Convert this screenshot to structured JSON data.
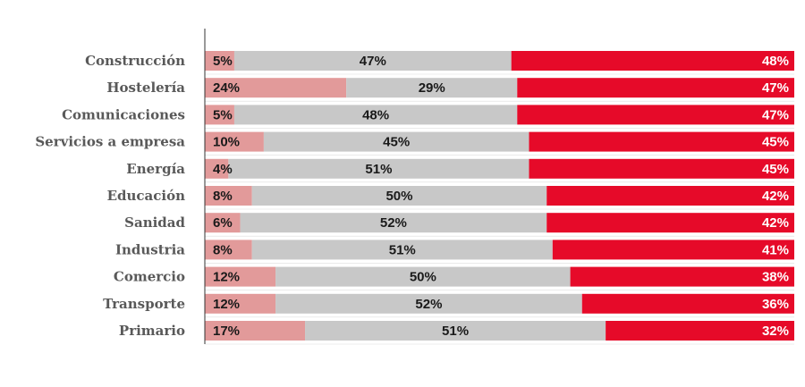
{
  "chart_data": {
    "type": "bar",
    "orientation": "horizontal",
    "stacked": true,
    "categories": [
      "Construcción",
      "Hostelería",
      "Comunicaciones",
      "Servicios a empresa",
      "Energía",
      "Educación",
      "Sanidad",
      "Industria",
      "Comercio",
      "Transporte",
      "Primario"
    ],
    "series": [
      {
        "values": [
          5,
          24,
          5,
          10,
          4,
          8,
          6,
          8,
          12,
          12,
          17
        ]
      },
      {
        "values": [
          47,
          29,
          48,
          45,
          51,
          50,
          52,
          51,
          50,
          52,
          51
        ]
      },
      {
        "values": [
          48,
          47,
          47,
          45,
          45,
          42,
          42,
          41,
          38,
          36,
          32
        ]
      }
    ],
    "value_labels": {
      "s0": [
        "5%",
        "24%",
        "5%",
        "10%",
        "4%",
        "8%",
        "6%",
        "8%",
        "12%",
        "12%",
        "17%"
      ],
      "s1": [
        "47%",
        "29%",
        "48%",
        "45%",
        "51%",
        "50%",
        "52%",
        "51%",
        "50%",
        "52%",
        "51%"
      ],
      "s2": [
        "48%",
        "47%",
        "47%",
        "45%",
        "45%",
        "42%",
        "42%",
        "41%",
        "38%",
        "36%",
        "32%"
      ]
    },
    "xlim": [
      0,
      100
    ],
    "title": "",
    "xlabel": "",
    "ylabel": "",
    "grid": false,
    "legend": "none"
  },
  "colors": {
    "series0": "#e29a9a",
    "series1": "#c8c8c8",
    "series2": "#e60a29",
    "text_dark": "#1a1a1a",
    "text_light": "#ffffff",
    "category_text": "#595959",
    "axis": "#333333",
    "separator": "#ffffff"
  }
}
